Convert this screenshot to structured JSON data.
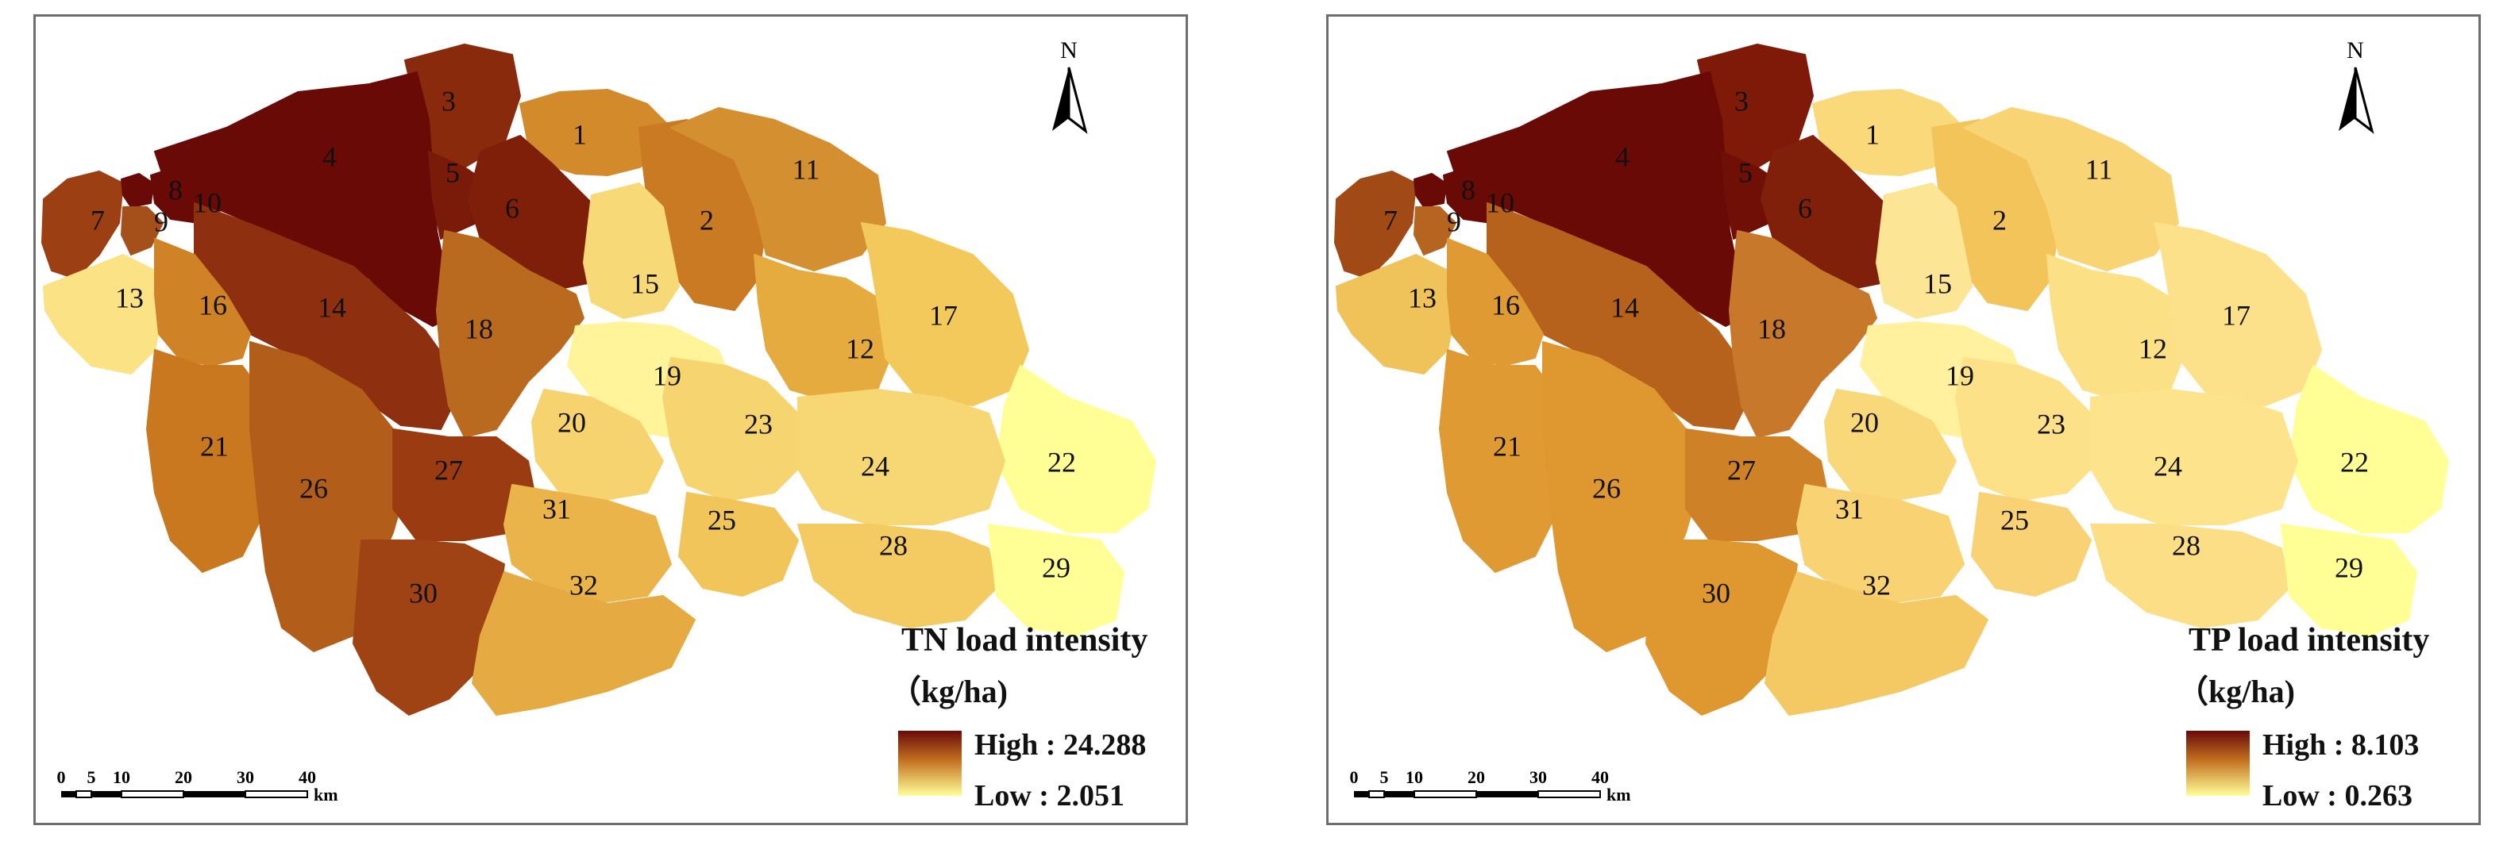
{
  "maps": [
    {
      "id": "tn",
      "legend_title": "TN load intensity",
      "legend_unit": "（kg/ha)",
      "high_label": "High : 24.288",
      "low_label": "Low : 2.051",
      "north_label": "N",
      "scale_ticks": [
        "0",
        "5",
        "10",
        "20",
        "30",
        "40"
      ],
      "scale_unit": "km",
      "subbasins": [
        {
          "id": "1",
          "color": "#d28a2a"
        },
        {
          "id": "2",
          "color": "#c97a23"
        },
        {
          "id": "3",
          "color": "#8a2a0c"
        },
        {
          "id": "4",
          "color": "#6a0a06"
        },
        {
          "id": "5",
          "color": "#7a1a08"
        },
        {
          "id": "6",
          "color": "#7f1f0a"
        },
        {
          "id": "7",
          "color": "#9c3f12"
        },
        {
          "id": "8",
          "color": "#6a0a06"
        },
        {
          "id": "9",
          "color": "#a5501a"
        },
        {
          "id": "10",
          "color": "#6a0a06"
        },
        {
          "id": "11",
          "color": "#d48f30"
        },
        {
          "id": "12",
          "color": "#e5ab3f"
        },
        {
          "id": "13",
          "color": "#fae285"
        },
        {
          "id": "14",
          "color": "#8e2f10"
        },
        {
          "id": "15",
          "color": "#f8d977"
        },
        {
          "id": "16",
          "color": "#cf8226"
        },
        {
          "id": "17",
          "color": "#f2c95a"
        },
        {
          "id": "18",
          "color": "#ba6a1e"
        },
        {
          "id": "19",
          "color": "#fff49a"
        },
        {
          "id": "20",
          "color": "#f6d36f"
        },
        {
          "id": "21",
          "color": "#c9781f"
        },
        {
          "id": "22",
          "color": "#ffff96"
        },
        {
          "id": "23",
          "color": "#f6d470"
        },
        {
          "id": "24",
          "color": "#f7d674"
        },
        {
          "id": "25",
          "color": "#f1c55a"
        },
        {
          "id": "26",
          "color": "#b25e1a"
        },
        {
          "id": "27",
          "color": "#9a3b12"
        },
        {
          "id": "28",
          "color": "#f3cb62"
        },
        {
          "id": "29",
          "color": "#ffff96"
        },
        {
          "id": "30",
          "color": "#9f4314"
        },
        {
          "id": "31",
          "color": "#eab44b"
        },
        {
          "id": "32",
          "color": "#e5ab42"
        }
      ]
    },
    {
      "id": "tp",
      "legend_title": "TP load intensity",
      "legend_unit": "（kg/ha)",
      "high_label": "High : 8.103",
      "low_label": "Low : 0.263",
      "north_label": "N",
      "scale_ticks": [
        "0",
        "5",
        "10",
        "20",
        "30",
        "40"
      ],
      "scale_unit": "km",
      "subbasins": [
        {
          "id": "1",
          "color": "#fad97a"
        },
        {
          "id": "2",
          "color": "#f2c45a"
        },
        {
          "id": "3",
          "color": "#7f1a08"
        },
        {
          "id": "4",
          "color": "#6a0a06"
        },
        {
          "id": "5",
          "color": "#6f0f06"
        },
        {
          "id": "6",
          "color": "#80200a"
        },
        {
          "id": "7",
          "color": "#a24a16"
        },
        {
          "id": "8",
          "color": "#6a0a06"
        },
        {
          "id": "9",
          "color": "#b56520"
        },
        {
          "id": "10",
          "color": "#6a0a06"
        },
        {
          "id": "11",
          "color": "#f8d474"
        },
        {
          "id": "12",
          "color": "#fbe085"
        },
        {
          "id": "13",
          "color": "#f0c25a"
        },
        {
          "id": "14",
          "color": "#b6621c"
        },
        {
          "id": "15",
          "color": "#fce594"
        },
        {
          "id": "16",
          "color": "#df9a33"
        },
        {
          "id": "17",
          "color": "#fce08a"
        },
        {
          "id": "18",
          "color": "#c8782a"
        },
        {
          "id": "19",
          "color": "#fff19e"
        },
        {
          "id": "20",
          "color": "#f9d879"
        },
        {
          "id": "21",
          "color": "#df9a33"
        },
        {
          "id": "22",
          "color": "#ffff96"
        },
        {
          "id": "23",
          "color": "#fde189"
        },
        {
          "id": "24",
          "color": "#fde38c"
        },
        {
          "id": "25",
          "color": "#f8d274"
        },
        {
          "id": "26",
          "color": "#de982f"
        },
        {
          "id": "27",
          "color": "#cf8128"
        },
        {
          "id": "28",
          "color": "#fbde86"
        },
        {
          "id": "29",
          "color": "#ffff96"
        },
        {
          "id": "30",
          "color": "#de982f"
        },
        {
          "id": "31",
          "color": "#f8d273"
        },
        {
          "id": "32",
          "color": "#f4c862"
        }
      ]
    }
  ]
}
